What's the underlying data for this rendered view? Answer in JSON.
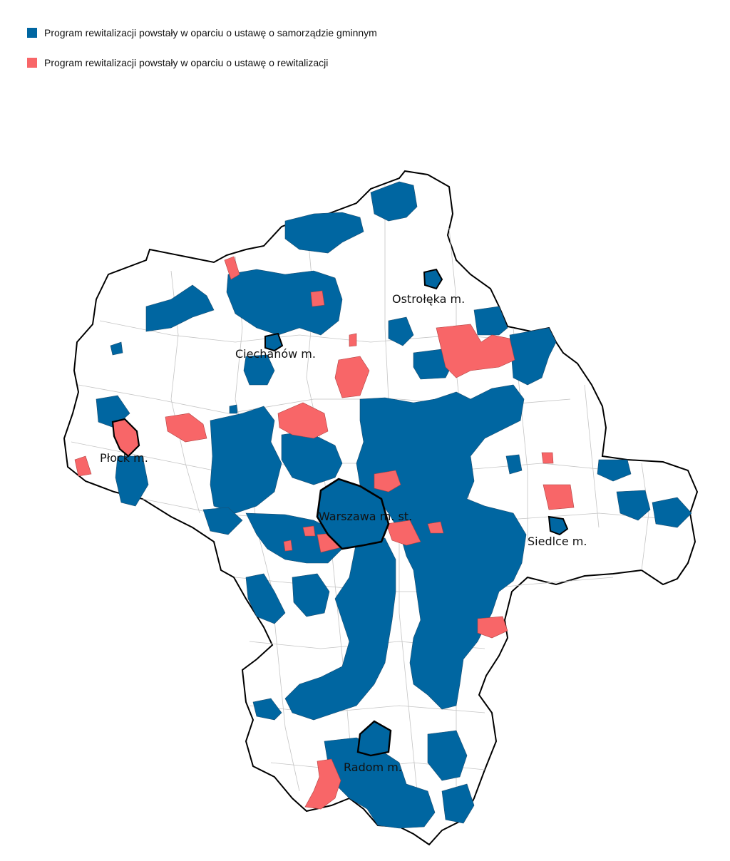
{
  "legend": {
    "items": [
      {
        "label": "Program rewitalizacji powstały w oparciu o ustawę o samorządzie gminnym",
        "color": "#0066a1"
      },
      {
        "label": "Program rewitalizacji powstały w oparciu o ustawę o rewitalizacji",
        "color": "#f86668"
      }
    ]
  },
  "map": {
    "region_colors": {
      "blue": "#0066a1",
      "red": "#f86668",
      "none": "#ffffff",
      "border": "#000000",
      "inner_border": "#b0b0b0"
    },
    "cities": [
      {
        "name": "Ostrołęka m."
      },
      {
        "name": "Ciechanów m."
      },
      {
        "name": "Płock m."
      },
      {
        "name": "Warszawa m. st."
      },
      {
        "name": "Siedlce m."
      },
      {
        "name": "Radom m."
      }
    ]
  }
}
